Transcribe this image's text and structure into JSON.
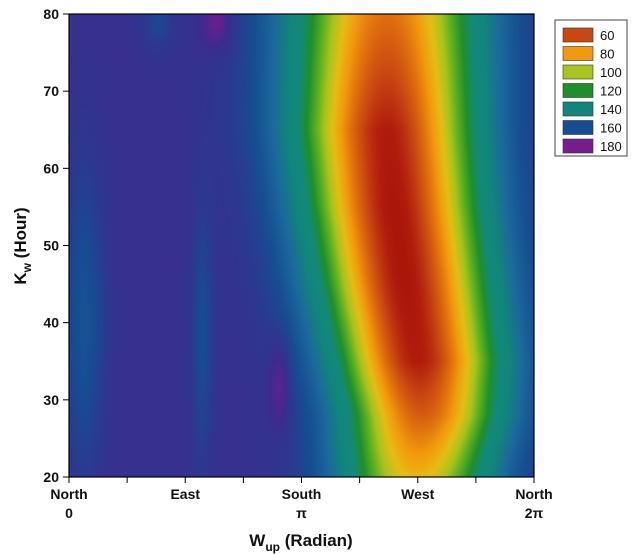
{
  "chart_data": {
    "type": "heatmap",
    "subtype": "filled-contour",
    "xlabel": {
      "main": "W",
      "sub": "up",
      "tail": " (Radian)"
    },
    "ylabel": {
      "main": "K",
      "sub": "w",
      "tail": " (Hour)"
    },
    "xlim": [
      0,
      6.2832
    ],
    "ylim": [
      20,
      80
    ],
    "x_ticks": [
      {
        "value": 0,
        "line1": "North",
        "line2": "0"
      },
      {
        "value": 0.7854,
        "line1": "",
        "line2": ""
      },
      {
        "value": 1.5708,
        "line1": "East",
        "line2": ""
      },
      {
        "value": 2.3562,
        "line1": "",
        "line2": ""
      },
      {
        "value": 3.1416,
        "line1": "South",
        "line2": "π"
      },
      {
        "value": 3.927,
        "line1": "",
        "line2": ""
      },
      {
        "value": 4.7124,
        "line1": "West",
        "line2": ""
      },
      {
        "value": 5.4978,
        "line1": "",
        "line2": ""
      },
      {
        "value": 6.2832,
        "line1": "North",
        "line2": "2π"
      }
    ],
    "y_ticks": [
      20,
      30,
      40,
      50,
      60,
      70,
      80
    ],
    "legend": {
      "placement": "top-right",
      "entries": [
        {
          "label": "60",
          "color": "#c94812"
        },
        {
          "label": "80",
          "color": "#f29a0c"
        },
        {
          "label": "100",
          "color": "#a9c41c"
        },
        {
          "label": "120",
          "color": "#1f8f2b"
        },
        {
          "label": "140",
          "color": "#11857c"
        },
        {
          "label": "160",
          "color": "#164d92"
        },
        {
          "label": "180",
          "color": "#761c8c"
        }
      ]
    },
    "colormap": [
      {
        "value": 38,
        "color": "#8a0000"
      },
      {
        "value": 50,
        "color": "#b01b0c"
      },
      {
        "value": 60,
        "color": "#c94812"
      },
      {
        "value": 70,
        "color": "#e0700d"
      },
      {
        "value": 80,
        "color": "#f29a0c"
      },
      {
        "value": 90,
        "color": "#e5bd14"
      },
      {
        "value": 100,
        "color": "#a9c41c"
      },
      {
        "value": 110,
        "color": "#5aae22"
      },
      {
        "value": 120,
        "color": "#1f8f2b"
      },
      {
        "value": 130,
        "color": "#12897a"
      },
      {
        "value": 140,
        "color": "#11857c"
      },
      {
        "value": 150,
        "color": "#1a6a9c"
      },
      {
        "value": 160,
        "color": "#164d92"
      },
      {
        "value": 166,
        "color": "#2b3990"
      },
      {
        "value": 172,
        "color": "#3d2b8e"
      },
      {
        "value": 180,
        "color": "#761c8c"
      }
    ],
    "field_model": {
      "background": 170,
      "valley": {
        "k_points": [
          20,
          28,
          35,
          45,
          55,
          65,
          80
        ],
        "center": [
          4.7,
          4.78,
          4.72,
          4.55,
          4.4,
          4.3,
          4.3
        ],
        "depth": [
          82,
          105,
          120,
          122,
          122,
          120,
          100
        ],
        "sigma": [
          0.7,
          0.72,
          0.75,
          0.78,
          0.8,
          0.82,
          0.85
        ]
      },
      "bumps": [
        {
          "w": 2.85,
          "k": 32,
          "sw": 0.1,
          "sk": 4,
          "amp": 10
        },
        {
          "w": 1.8,
          "k": 38,
          "sw": 0.1,
          "sk": 12,
          "amp": -10
        },
        {
          "w": 0.2,
          "k": 40,
          "sw": 0.2,
          "sk": 14,
          "amp": -12
        },
        {
          "w": 1.2,
          "k": 79,
          "sw": 0.15,
          "sk": 2.5,
          "amp": -8
        },
        {
          "w": 2.0,
          "k": 79,
          "sw": 0.15,
          "sk": 2.5,
          "amp": 10
        }
      ]
    }
  }
}
